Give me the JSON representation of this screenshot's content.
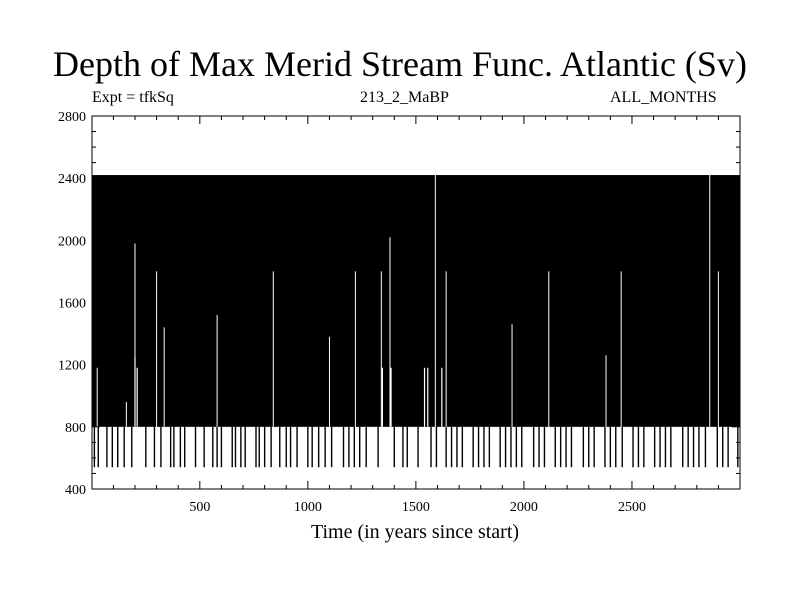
{
  "chart_data": {
    "type": "line",
    "title": "Depth of Max Merid Stream Func. Atlantic (Sv)",
    "subtitle_left": "Expt = tfkSq",
    "subtitle_center": "213_2_MaBP",
    "subtitle_right": "ALL_MONTHS",
    "xlabel": "Time (in years since start)",
    "ylabel": "",
    "xlim": [
      1,
      3000
    ],
    "ylim": [
      400,
      2800
    ],
    "xticks": [
      500,
      1000,
      1500,
      2000,
      2500
    ],
    "yticks": [
      400,
      800,
      1200,
      1600,
      2000,
      2400,
      2800
    ],
    "grid": false,
    "legend": "none",
    "series": [
      {
        "color": "#000000",
        "description_values": "depth oscillates rapidly between discrete levels",
        "levels": [
          540,
          800,
          1200,
          1250,
          1800,
          2000,
          2400
        ],
        "upper_envelope": 2420,
        "dip_events": [
          {
            "x": 12,
            "y": 540
          },
          {
            "x": 30,
            "y": 540
          },
          {
            "x": 55,
            "y": 800
          },
          {
            "x": 70,
            "y": 540
          },
          {
            "x": 95,
            "y": 540
          },
          {
            "x": 120,
            "y": 540
          },
          {
            "x": 150,
            "y": 540
          },
          {
            "x": 165,
            "y": 800
          },
          {
            "x": 185,
            "y": 540
          },
          {
            "x": 200,
            "y": 1250
          },
          {
            "x": 210,
            "y": 1180
          },
          {
            "x": 250,
            "y": 540
          },
          {
            "x": 270,
            "y": 800
          },
          {
            "x": 290,
            "y": 540
          },
          {
            "x": 320,
            "y": 540
          },
          {
            "x": 345,
            "y": 800
          },
          {
            "x": 365,
            "y": 540
          },
          {
            "x": 380,
            "y": 540
          },
          {
            "x": 410,
            "y": 540
          },
          {
            "x": 430,
            "y": 540
          },
          {
            "x": 460,
            "y": 800
          },
          {
            "x": 480,
            "y": 540
          },
          {
            "x": 520,
            "y": 540
          },
          {
            "x": 545,
            "y": 800
          },
          {
            "x": 560,
            "y": 540
          },
          {
            "x": 580,
            "y": 540
          },
          {
            "x": 600,
            "y": 540
          },
          {
            "x": 625,
            "y": 800
          },
          {
            "x": 650,
            "y": 540
          },
          {
            "x": 665,
            "y": 540
          },
          {
            "x": 690,
            "y": 540
          },
          {
            "x": 710,
            "y": 540
          },
          {
            "x": 740,
            "y": 800
          },
          {
            "x": 760,
            "y": 540
          },
          {
            "x": 775,
            "y": 540
          },
          {
            "x": 800,
            "y": 540
          },
          {
            "x": 830,
            "y": 540
          },
          {
            "x": 850,
            "y": 800
          },
          {
            "x": 870,
            "y": 540
          },
          {
            "x": 900,
            "y": 540
          },
          {
            "x": 920,
            "y": 540
          },
          {
            "x": 950,
            "y": 540
          },
          {
            "x": 975,
            "y": 800
          },
          {
            "x": 1000,
            "y": 540
          },
          {
            "x": 1020,
            "y": 540
          },
          {
            "x": 1050,
            "y": 540
          },
          {
            "x": 1080,
            "y": 540
          },
          {
            "x": 1110,
            "y": 540
          },
          {
            "x": 1140,
            "y": 800
          },
          {
            "x": 1165,
            "y": 540
          },
          {
            "x": 1190,
            "y": 540
          },
          {
            "x": 1215,
            "y": 540
          },
          {
            "x": 1240,
            "y": 540
          },
          {
            "x": 1270,
            "y": 540
          },
          {
            "x": 1300,
            "y": 800
          },
          {
            "x": 1325,
            "y": 540
          },
          {
            "x": 1345,
            "y": 1180
          },
          {
            "x": 1365,
            "y": 800
          },
          {
            "x": 1385,
            "y": 1180
          },
          {
            "x": 1400,
            "y": 540
          },
          {
            "x": 1420,
            "y": 800
          },
          {
            "x": 1440,
            "y": 540
          },
          {
            "x": 1460,
            "y": 540
          },
          {
            "x": 1485,
            "y": 800
          },
          {
            "x": 1510,
            "y": 540
          },
          {
            "x": 1540,
            "y": 1180
          },
          {
            "x": 1555,
            "y": 1180
          },
          {
            "x": 1570,
            "y": 540
          },
          {
            "x": 1595,
            "y": 540
          },
          {
            "x": 1620,
            "y": 1180
          },
          {
            "x": 1640,
            "y": 540
          },
          {
            "x": 1665,
            "y": 540
          },
          {
            "x": 1690,
            "y": 540
          },
          {
            "x": 1715,
            "y": 540
          },
          {
            "x": 1740,
            "y": 800
          },
          {
            "x": 1765,
            "y": 540
          },
          {
            "x": 1790,
            "y": 540
          },
          {
            "x": 1815,
            "y": 540
          },
          {
            "x": 1840,
            "y": 540
          },
          {
            "x": 1865,
            "y": 800
          },
          {
            "x": 1890,
            "y": 540
          },
          {
            "x": 1915,
            "y": 540
          },
          {
            "x": 1940,
            "y": 540
          },
          {
            "x": 1965,
            "y": 540
          },
          {
            "x": 1990,
            "y": 540
          },
          {
            "x": 2020,
            "y": 800
          },
          {
            "x": 2045,
            "y": 540
          },
          {
            "x": 2070,
            "y": 540
          },
          {
            "x": 2095,
            "y": 540
          },
          {
            "x": 2120,
            "y": 800
          },
          {
            "x": 2145,
            "y": 540
          },
          {
            "x": 2170,
            "y": 540
          },
          {
            "x": 2195,
            "y": 540
          },
          {
            "x": 2220,
            "y": 540
          },
          {
            "x": 2250,
            "y": 800
          },
          {
            "x": 2275,
            "y": 540
          },
          {
            "x": 2300,
            "y": 540
          },
          {
            "x": 2325,
            "y": 540
          },
          {
            "x": 2350,
            "y": 800
          },
          {
            "x": 2375,
            "y": 540
          },
          {
            "x": 2400,
            "y": 540
          },
          {
            "x": 2425,
            "y": 540
          },
          {
            "x": 2455,
            "y": 540
          },
          {
            "x": 2480,
            "y": 800
          },
          {
            "x": 2505,
            "y": 540
          },
          {
            "x": 2530,
            "y": 540
          },
          {
            "x": 2555,
            "y": 540
          },
          {
            "x": 2580,
            "y": 800
          },
          {
            "x": 2605,
            "y": 540
          },
          {
            "x": 2630,
            "y": 540
          },
          {
            "x": 2655,
            "y": 540
          },
          {
            "x": 2680,
            "y": 540
          },
          {
            "x": 2710,
            "y": 800
          },
          {
            "x": 2735,
            "y": 540
          },
          {
            "x": 2760,
            "y": 540
          },
          {
            "x": 2785,
            "y": 540
          },
          {
            "x": 2810,
            "y": 540
          },
          {
            "x": 2840,
            "y": 540
          },
          {
            "x": 2870,
            "y": 800
          },
          {
            "x": 2895,
            "y": 540
          },
          {
            "x": 2920,
            "y": 540
          },
          {
            "x": 2945,
            "y": 540
          },
          {
            "x": 2970,
            "y": 800
          },
          {
            "x": 2990,
            "y": 540
          }
        ],
        "peak_events": [
          {
            "x": 25,
            "y": 1180
          },
          {
            "x": 160,
            "y": 960
          },
          {
            "x": 200,
            "y": 1980
          },
          {
            "x": 300,
            "y": 1800
          },
          {
            "x": 335,
            "y": 1440
          },
          {
            "x": 580,
            "y": 1520
          },
          {
            "x": 840,
            "y": 1800
          },
          {
            "x": 1100,
            "y": 1380
          },
          {
            "x": 1220,
            "y": 1800
          },
          {
            "x": 1340,
            "y": 1800
          },
          {
            "x": 1380,
            "y": 2020
          },
          {
            "x": 1590,
            "y": 2420
          },
          {
            "x": 1640,
            "y": 1800
          },
          {
            "x": 1945,
            "y": 1460
          },
          {
            "x": 2115,
            "y": 1800
          },
          {
            "x": 2380,
            "y": 1260
          },
          {
            "x": 2450,
            "y": 1800
          },
          {
            "x": 2860,
            "y": 2420
          },
          {
            "x": 2900,
            "y": 1800
          }
        ]
      }
    ]
  }
}
